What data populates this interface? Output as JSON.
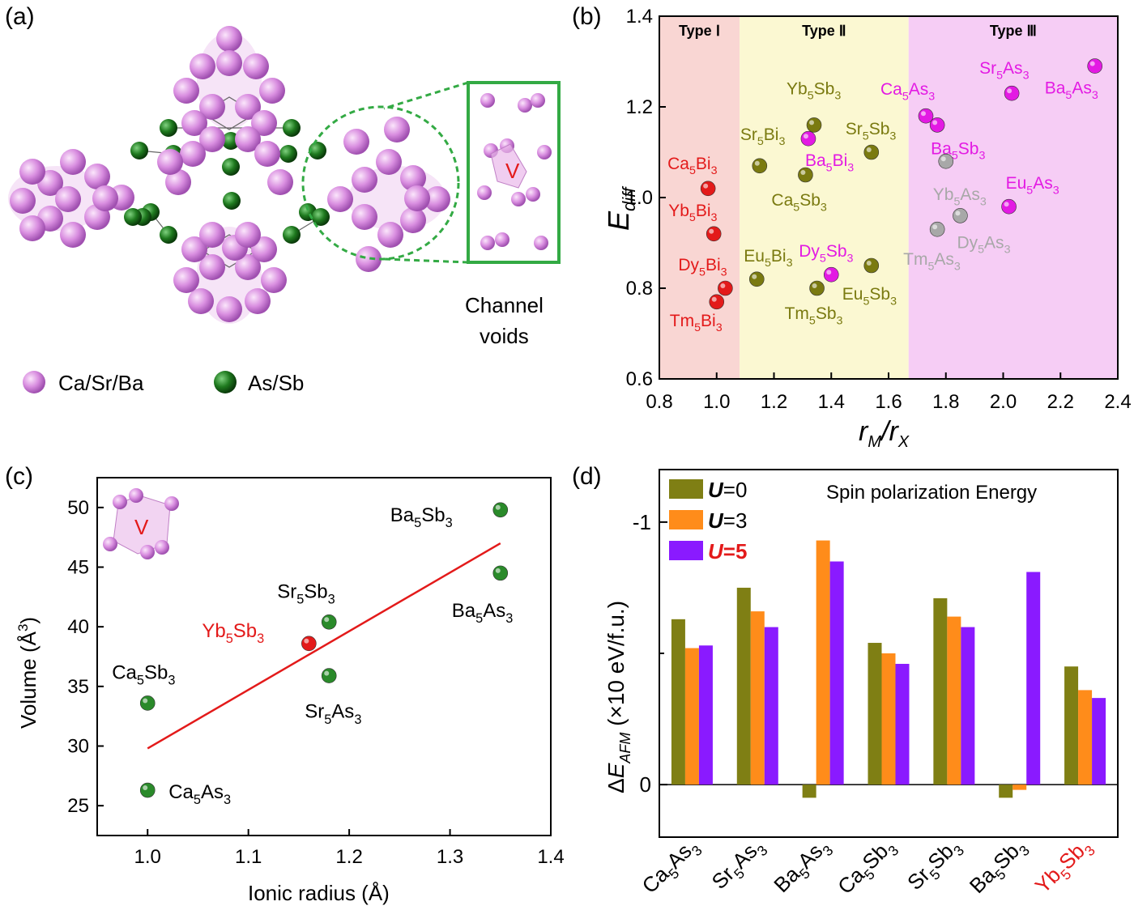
{
  "panels": {
    "a": {
      "label": "(a)",
      "channel_label": [
        "Channel",
        "voids"
      ],
      "void_symbol": "V",
      "legend": [
        {
          "name": "Ca/Sr/Ba",
          "color": "#d98ee0"
        },
        {
          "name": "As/Sb",
          "color": "#1f7a1f"
        }
      ]
    },
    "b": {
      "label": "(b)"
    },
    "c": {
      "label": "(c)",
      "void_symbol": "V"
    },
    "d": {
      "label": "(d)"
    }
  },
  "chart_data": [
    {
      "panel": "b",
      "type": "scatter",
      "xlabel": "r_M/r_X",
      "ylabel": "E_diff",
      "xlim": [
        0.8,
        2.4
      ],
      "ylim": [
        0.6,
        1.4
      ],
      "xticks": [
        "0.8",
        "1.0",
        "1.2",
        "1.4",
        "1.6",
        "1.8",
        "2.0",
        "2.2",
        "2.4"
      ],
      "yticks": [
        "0.6",
        "0.8",
        "1.0",
        "1.2",
        "1.4"
      ],
      "regions": [
        {
          "name": "Type Ⅰ",
          "x0": 0.8,
          "x1": 1.08,
          "color": "#f9d6d3"
        },
        {
          "name": "Type Ⅱ",
          "x0": 1.08,
          "x1": 1.67,
          "color": "#fbf8d2"
        },
        {
          "name": "Type Ⅲ",
          "x0": 1.67,
          "x1": 2.4,
          "color": "#f6cdf5"
        }
      ],
      "points": [
        {
          "label": "Ca5Bi3",
          "x": 0.97,
          "y": 1.02,
          "color": "#e31a1a"
        },
        {
          "label": "Yb5Bi3",
          "x": 0.99,
          "y": 0.92,
          "color": "#e31a1a"
        },
        {
          "label": "Dy5Bi3",
          "x": 1.03,
          "y": 0.8,
          "color": "#e31a1a"
        },
        {
          "label": "Tm5Bi3",
          "x": 1.0,
          "y": 0.77,
          "color": "#e31a1a"
        },
        {
          "label": "Yb5Sb3",
          "x": 1.34,
          "y": 1.16,
          "color": "#7a7a10"
        },
        {
          "label": "Sr5Bi3",
          "x": 1.15,
          "y": 1.07,
          "color": "#7a7a10"
        },
        {
          "label": "Ca5Sb3",
          "x": 1.31,
          "y": 1.05,
          "color": "#7a7a10"
        },
        {
          "label": "Sr5Sb3",
          "x": 1.54,
          "y": 1.1,
          "color": "#7a7a10"
        },
        {
          "label": "Eu5Bi3",
          "x": 1.14,
          "y": 0.82,
          "color": "#7a7a10"
        },
        {
          "label": "Tm5Sb3",
          "x": 1.35,
          "y": 0.8,
          "color": "#7a7a10"
        },
        {
          "label": "Eu5Sb3",
          "x": 1.54,
          "y": 0.85,
          "color": "#7a7a10"
        },
        {
          "label": "Ba5Bi3",
          "x": 1.32,
          "y": 1.13,
          "color": "#e31ae3"
        },
        {
          "label": "Dy5Sb3",
          "x": 1.4,
          "y": 0.83,
          "color": "#e31ae3"
        },
        {
          "label": "Ca5As3",
          "x": 1.73,
          "y": 1.18,
          "color": "#e31ae3"
        },
        {
          "label": "Ba5Sb3",
          "x": 1.77,
          "y": 1.16,
          "color": "#e31ae3"
        },
        {
          "label": "Sr5As3",
          "x": 2.03,
          "y": 1.23,
          "color": "#e31ae3"
        },
        {
          "label": "Ba5As3",
          "x": 2.32,
          "y": 1.29,
          "color": "#e31ae3"
        },
        {
          "label": "Eu5As3",
          "x": 2.02,
          "y": 0.98,
          "color": "#e31ae3"
        },
        {
          "label": "Yb5As3",
          "x": 1.8,
          "y": 1.08,
          "color": "#a8a8a8"
        },
        {
          "label": "Dy5As3",
          "x": 1.85,
          "y": 0.96,
          "color": "#a8a8a8"
        },
        {
          "label": "Tm5As3",
          "x": 1.77,
          "y": 0.93,
          "color": "#a8a8a8"
        }
      ]
    },
    {
      "panel": "c",
      "type": "scatter",
      "xlabel": "Ionic radius (Å)",
      "ylabel": "Volume (Å3)",
      "xlim": [
        0.95,
        1.4
      ],
      "ylim": [
        22.5,
        52.5
      ],
      "xticks": [
        "1.0",
        "1.1",
        "1.2",
        "1.3",
        "1.4"
      ],
      "yticks": [
        "25",
        "30",
        "35",
        "40",
        "45",
        "50"
      ],
      "points": [
        {
          "label": "Ca5As3",
          "x": 1.0,
          "y": 26.3,
          "color": "#2a8a2a"
        },
        {
          "label": "Ca5Sb3",
          "x": 1.0,
          "y": 33.6,
          "color": "#2a8a2a"
        },
        {
          "label": "Sr5As3",
          "x": 1.18,
          "y": 35.9,
          "color": "#2a8a2a"
        },
        {
          "label": "Sr5Sb3",
          "x": 1.18,
          "y": 40.4,
          "color": "#2a8a2a"
        },
        {
          "label": "Yb5Sb3",
          "x": 1.16,
          "y": 38.6,
          "color": "#e31a1a"
        },
        {
          "label": "Ba5As3",
          "x": 1.35,
          "y": 44.5,
          "color": "#2a8a2a"
        },
        {
          "label": "Ba5Sb3",
          "x": 1.35,
          "y": 49.8,
          "color": "#2a8a2a"
        }
      ],
      "fit_line": {
        "x": [
          1.0,
          1.35
        ],
        "y": [
          29.8,
          47.0
        ],
        "color": "#e31a1a"
      }
    },
    {
      "panel": "d",
      "type": "bar",
      "title": "Spin polarization Energy",
      "ylabel": "ΔE_AFM (×10 eV/f.u.)",
      "ylim": [
        0.2,
        -1.2
      ],
      "yticks": [
        "0",
        "-1"
      ],
      "categories": [
        "Ca5As3",
        "Sr5As3",
        "Ba5As3",
        "Ca5Sb3",
        "Sr5Sb3",
        "Ba5Sb3",
        "Yb5Sb3"
      ],
      "highlight_category": "Yb5Sb3",
      "series": [
        {
          "name": "U=0",
          "color": "#7f7f14",
          "values": [
            -0.63,
            -0.75,
            0.05,
            -0.54,
            -0.71,
            0.05,
            -0.45
          ]
        },
        {
          "name": "U=3",
          "color": "#ff8c1a",
          "values": [
            -0.52,
            -0.66,
            -0.93,
            -0.5,
            -0.64,
            0.02,
            -0.36
          ]
        },
        {
          "name": "U=5",
          "color": "#8a1aff",
          "values": [
            -0.53,
            -0.6,
            -0.85,
            -0.46,
            -0.6,
            -0.81,
            -0.33
          ]
        }
      ]
    }
  ]
}
